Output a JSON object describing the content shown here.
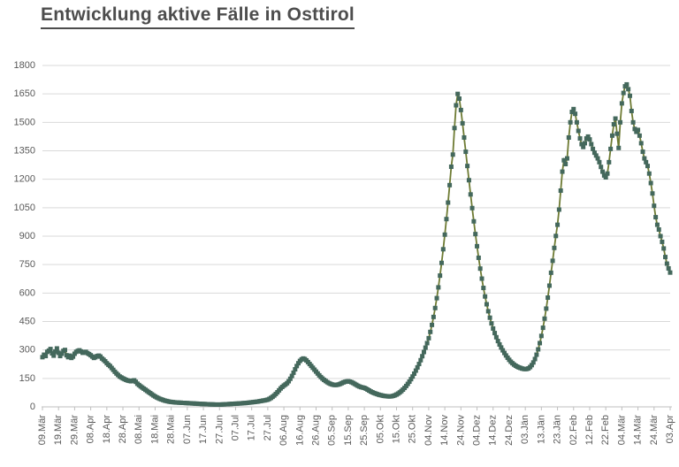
{
  "title": "Entwicklung aktive Fälle in Osttirol",
  "chart_data": {
    "type": "line",
    "title": "Entwicklung aktive Fälle in Osttirol",
    "xlabel": "",
    "ylabel": "",
    "ylim": [
      0,
      1800
    ],
    "y_ticks": [
      0,
      150,
      300,
      450,
      600,
      750,
      900,
      1050,
      1200,
      1350,
      1500,
      1650,
      1800
    ],
    "grid": "horizontal",
    "legend": "none",
    "marker": "square",
    "x_unit": "day",
    "x_tick_interval_days": 10,
    "x_tick_labels": [
      "09.Mär",
      "19.Mär",
      "29.Mär",
      "08.Apr",
      "18.Apr",
      "28.Apr",
      "08.Mai",
      "18.Mai",
      "28.Mai",
      "07.Jun",
      "17.Jun",
      "27.Jun",
      "07.Jul",
      "17.Jul",
      "27.Jul",
      "06.Aug",
      "16.Aug",
      "26.Aug",
      "05.Sep",
      "15.Sep",
      "25.Sep",
      "05.Okt",
      "15.Okt",
      "25.Okt",
      "04.Nov",
      "14.Nov",
      "24.Nov",
      "04.Dez",
      "14.Dez",
      "24.Dez",
      "03.Jän",
      "13.Jän",
      "23.Jän",
      "02.Feb",
      "12.Feb",
      "22.Feb",
      "04.Mär",
      "14.Mär",
      "24.Mär",
      "03.Apr"
    ],
    "values": [
      262,
      275,
      268,
      290,
      296,
      305,
      282,
      270,
      292,
      308,
      285,
      268,
      280,
      295,
      300,
      272,
      262,
      270,
      258,
      265,
      280,
      290,
      295,
      298,
      292,
      285,
      288,
      290,
      283,
      278,
      272,
      265,
      258,
      262,
      268,
      270,
      265,
      255,
      248,
      240,
      230,
      222,
      215,
      205,
      195,
      185,
      176,
      168,
      160,
      155,
      150,
      146,
      142,
      139,
      137,
      135,
      138,
      140,
      132,
      122,
      115,
      108,
      102,
      96,
      90,
      84,
      78,
      72,
      66,
      60,
      55,
      50,
      46,
      42,
      39,
      36,
      33,
      31,
      29,
      27,
      26,
      25,
      24,
      23,
      23,
      22,
      22,
      21,
      21,
      20,
      20,
      19,
      19,
      18,
      18,
      17,
      17,
      16,
      16,
      15,
      15,
      15,
      14,
      14,
      13,
      13,
      13,
      12,
      12,
      12,
      12,
      12,
      13,
      13,
      14,
      14,
      15,
      15,
      16,
      16,
      17,
      17,
      18,
      18,
      19,
      20,
      20,
      21,
      22,
      23,
      24,
      25,
      26,
      27,
      28,
      30,
      31,
      33,
      34,
      36,
      38,
      42,
      47,
      53,
      60,
      68,
      77,
      87,
      97,
      105,
      112,
      118,
      125,
      135,
      148,
      163,
      180,
      198,
      215,
      230,
      242,
      250,
      255,
      252,
      245,
      236,
      226,
      216,
      206,
      196,
      186,
      176,
      166,
      157,
      149,
      142,
      136,
      130,
      125,
      121,
      118,
      116,
      115,
      116,
      118,
      121,
      125,
      129,
      132,
      134,
      135,
      133,
      130,
      126,
      121,
      116,
      111,
      107,
      104,
      102,
      100,
      96,
      91,
      86,
      81,
      77,
      73,
      70,
      67,
      64,
      62,
      60,
      58,
      57,
      56,
      55,
      55,
      56,
      58,
      61,
      65,
      70,
      76,
      83,
      91,
      100,
      110,
      121,
      133,
      146,
      160,
      175,
      191,
      208,
      226,
      246,
      267,
      289,
      312,
      336,
      362,
      395,
      432,
      474,
      521,
      573,
      630,
      692,
      759,
      831,
      908,
      990,
      1077,
      1169,
      1266,
      1330,
      1470,
      1590,
      1650,
      1625,
      1565,
      1495,
      1420,
      1345,
      1270,
      1195,
      1120,
      1048,
      978,
      911,
      847,
      786,
      729,
      676,
      627,
      582,
      541,
      504,
      470,
      440,
      413,
      389,
      367,
      347,
      329,
      313,
      298,
      284,
      271,
      259,
      248,
      238,
      230,
      223,
      217,
      212,
      208,
      205,
      202,
      200,
      199,
      200,
      203,
      210,
      220,
      234,
      252,
      275,
      303,
      336,
      374,
      417,
      465,
      518,
      576,
      639,
      707,
      770,
      838,
      901,
      960,
      1040,
      1140,
      1240,
      1300,
      1280,
      1310,
      1420,
      1500,
      1555,
      1570,
      1545,
      1500,
      1455,
      1415,
      1385,
      1370,
      1390,
      1415,
      1425,
      1410,
      1385,
      1360,
      1340,
      1325,
      1310,
      1290,
      1265,
      1240,
      1220,
      1210,
      1230,
      1290,
      1360,
      1430,
      1490,
      1520,
      1440,
      1365,
      1500,
      1600,
      1655,
      1690,
      1700,
      1675,
      1640,
      1560,
      1500,
      1465,
      1450,
      1460,
      1430,
      1390,
      1345,
      1310,
      1290,
      1270,
      1230,
      1180,
      1125,
      1060,
      1000,
      960,
      935,
      900,
      870,
      835,
      790,
      755,
      730,
      708
    ],
    "colors": {
      "line": "#6e7b33",
      "marker": "#44685c",
      "gridline": "#d9d9d9",
      "axis_line": "#bfbfbf",
      "tick_label": "#595959",
      "title": "#4d4d4d"
    }
  }
}
